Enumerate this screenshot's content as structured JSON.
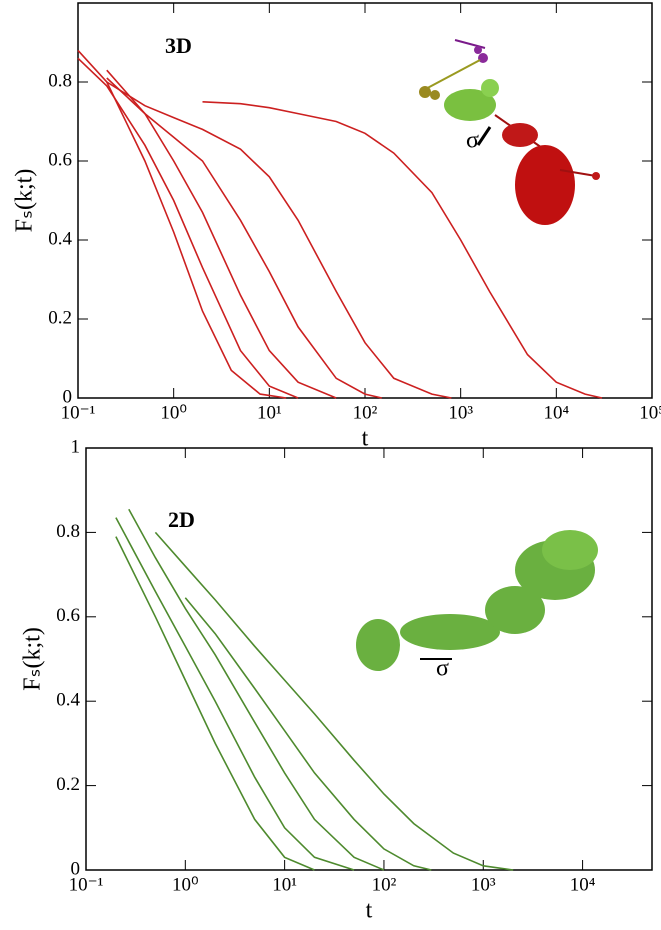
{
  "chart_data": [
    {
      "type": "line",
      "x_label": "t",
      "y_label": "Fₛ(k;t)",
      "annotations": [
        "3D",
        "σ"
      ],
      "log_x": true,
      "xlim": [
        0.1,
        100000
      ],
      "ylim": [
        0,
        1
      ],
      "xticks": [
        {
          "value": 0.1,
          "label": "10⁻¹"
        },
        {
          "value": 1,
          "label": "10⁰"
        },
        {
          "value": 10,
          "label": "10¹"
        },
        {
          "value": 100,
          "label": "10²"
        },
        {
          "value": 1000,
          "label": "10³"
        },
        {
          "value": 10000,
          "label": "10⁴"
        },
        {
          "value": 100000,
          "label": "10⁵"
        }
      ],
      "yticks": [
        0,
        0.2,
        0.4,
        0.6,
        0.8
      ],
      "series": [
        {
          "color": "#cc2020",
          "x": [
            0.1,
            0.2,
            0.5,
            1,
            2,
            4,
            8,
            15
          ],
          "values": [
            0.88,
            0.8,
            0.6,
            0.42,
            0.22,
            0.07,
            0.01,
            0
          ]
        },
        {
          "color": "#cc2020",
          "x": [
            0.1,
            0.2,
            0.5,
            1,
            2,
            5,
            10,
            20
          ],
          "values": [
            0.86,
            0.79,
            0.64,
            0.5,
            0.33,
            0.12,
            0.03,
            0
          ]
        },
        {
          "color": "#cc2020",
          "x": [
            0.2,
            0.5,
            1,
            2,
            5,
            10,
            20,
            50
          ],
          "values": [
            0.83,
            0.72,
            0.6,
            0.47,
            0.26,
            0.12,
            0.04,
            0
          ]
        },
        {
          "color": "#cc2020",
          "x": [
            0.2,
            0.5,
            1,
            2,
            5,
            10,
            20,
            50,
            100,
            150
          ],
          "values": [
            0.81,
            0.72,
            0.66,
            0.6,
            0.45,
            0.32,
            0.18,
            0.05,
            0.01,
            0
          ]
        },
        {
          "color": "#cc2020",
          "x": [
            0.2,
            0.5,
            1,
            2,
            5,
            10,
            20,
            50,
            100,
            200,
            500,
            800
          ],
          "values": [
            0.8,
            0.74,
            0.71,
            0.68,
            0.63,
            0.56,
            0.45,
            0.27,
            0.14,
            0.05,
            0.01,
            0
          ]
        },
        {
          "color": "#cc2020",
          "x": [
            2,
            5,
            10,
            20,
            50,
            100,
            200,
            500,
            1000,
            2000,
            5000,
            10000,
            20000,
            30000
          ],
          "values": [
            0.75,
            0.745,
            0.735,
            0.72,
            0.7,
            0.67,
            0.62,
            0.52,
            0.4,
            0.27,
            0.11,
            0.04,
            0.01,
            0
          ]
        }
      ]
    },
    {
      "type": "line",
      "x_label": "t",
      "y_label": "Fₛ(k;t)",
      "annotations": [
        "2D",
        "σ"
      ],
      "log_x": true,
      "xlim": [
        0.1,
        50000
      ],
      "ylim": [
        0,
        1
      ],
      "xticks": [
        {
          "value": 0.1,
          "label": "10⁻¹"
        },
        {
          "value": 1,
          "label": "10⁰"
        },
        {
          "value": 10,
          "label": "10¹"
        },
        {
          "value": 100,
          "label": "10²"
        },
        {
          "value": 1000,
          "label": "10³"
        },
        {
          "value": 10000,
          "label": "10⁴"
        }
      ],
      "yticks": [
        0,
        0.2,
        0.4,
        0.6,
        0.8,
        1
      ],
      "series": [
        {
          "color": "#4e8a2e",
          "x": [
            0.2,
            0.5,
            1,
            2,
            5,
            10,
            20
          ],
          "values": [
            0.79,
            0.6,
            0.45,
            0.3,
            0.12,
            0.03,
            0
          ]
        },
        {
          "color": "#4e8a2e",
          "x": [
            0.2,
            0.5,
            1,
            2,
            5,
            10,
            20,
            50
          ],
          "values": [
            0.835,
            0.66,
            0.53,
            0.4,
            0.22,
            0.1,
            0.03,
            0
          ]
        },
        {
          "color": "#4e8a2e",
          "x": [
            0.27,
            0.5,
            1,
            2,
            5,
            10,
            20,
            50,
            100
          ],
          "values": [
            0.855,
            0.74,
            0.62,
            0.51,
            0.35,
            0.23,
            0.12,
            0.03,
            0
          ]
        },
        {
          "color": "#4e8a2e",
          "x": [
            1,
            2,
            5,
            10,
            20,
            50,
            100,
            200,
            300
          ],
          "values": [
            0.645,
            0.56,
            0.43,
            0.33,
            0.23,
            0.12,
            0.05,
            0.01,
            0
          ]
        },
        {
          "color": "#4e8a2e",
          "x": [
            0.5,
            1,
            2,
            5,
            10,
            20,
            50,
            100,
            200,
            500,
            1000,
            2000
          ],
          "values": [
            0.8,
            0.72,
            0.64,
            0.53,
            0.45,
            0.37,
            0.26,
            0.18,
            0.11,
            0.04,
            0.01,
            0
          ]
        }
      ]
    }
  ]
}
